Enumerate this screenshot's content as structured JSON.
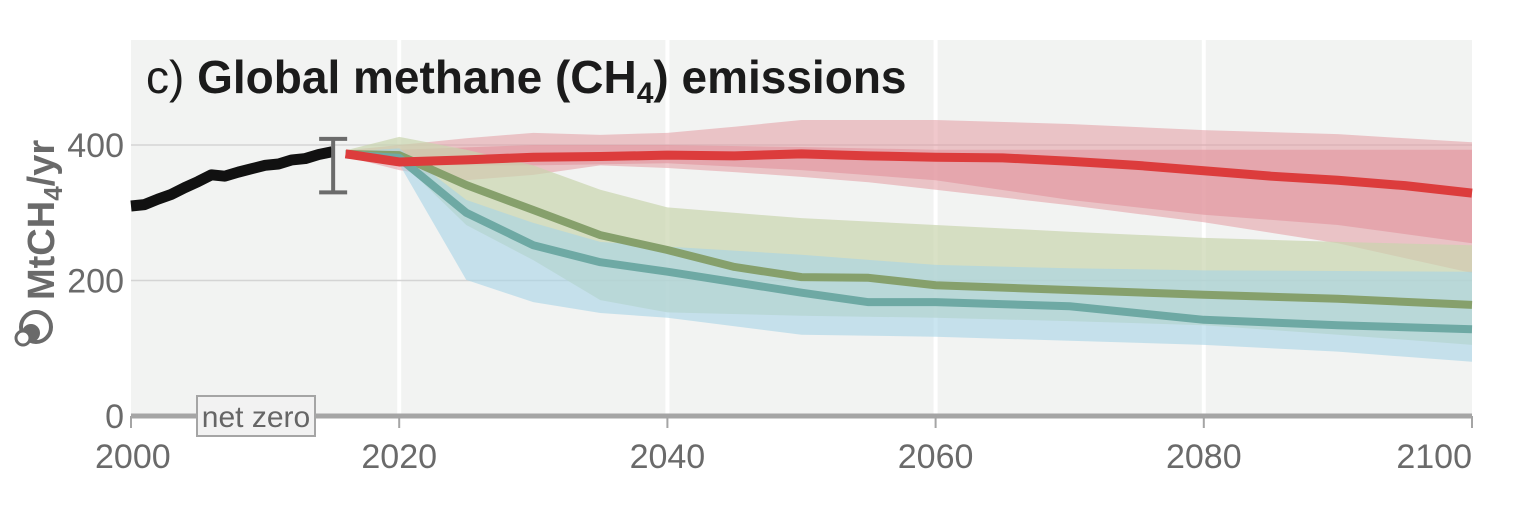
{
  "chart_data": {
    "type": "line",
    "title": {
      "prefix": "c)",
      "main": "Global methane (CH",
      "sub": "4",
      "suffix": ") emissions"
    },
    "ylabel": {
      "main": "MtCH",
      "sub": "4",
      "suffix": "/yr"
    },
    "ylabel_icon": "molecule-icon",
    "xlim": [
      2000,
      2100
    ],
    "ylim": [
      0,
      555
    ],
    "x_ticks": [
      2000,
      2020,
      2040,
      2060,
      2080,
      2100
    ],
    "y_ticks": [
      0,
      200,
      400
    ],
    "grid": true,
    "annotation": "net zero",
    "colors": {
      "background": "#f2f3f2",
      "historical": "#111111",
      "red": "#dc3c3c",
      "olive": "#86a06c",
      "teal": "#6ea9a4",
      "red_band": "#e39aa2",
      "olive_band": "#c9d4ae",
      "blue_band": "#a6d3e6",
      "error_bar": "#6b6b6b",
      "axis": "#a5a5a5"
    },
    "historical": {
      "x": [
        2000,
        2001,
        2002,
        2003,
        2004,
        2005,
        2006,
        2007,
        2008,
        2009,
        2010,
        2011,
        2012,
        2013,
        2014,
        2015
      ],
      "y": [
        310,
        312,
        320,
        327,
        337,
        346,
        356,
        354,
        360,
        365,
        370,
        372,
        378,
        380,
        386,
        390
      ]
    },
    "error_bar": {
      "x": 2015,
      "low": 330,
      "high": 409
    },
    "bands": [
      {
        "id": "red-outer",
        "color": "red_band",
        "opacity": 0.55,
        "x": [
          2016,
          2020,
          2025,
          2030,
          2035,
          2040,
          2045,
          2050,
          2055,
          2060,
          2070,
          2080,
          2090,
          2100
        ],
        "upper": [
          392,
          400,
          410,
          418,
          415,
          418,
          427,
          437,
          437,
          437,
          431,
          422,
          416,
          404
        ],
        "lower": [
          383,
          363,
          348,
          356,
          370,
          366,
          360,
          353,
          345,
          334,
          311,
          286,
          255,
          211
        ]
      },
      {
        "id": "red-inner",
        "color": "red_band",
        "opacity": 0.7,
        "x": [
          2016,
          2020,
          2030,
          2040,
          2050,
          2060,
          2070,
          2080,
          2090,
          2100
        ],
        "upper": [
          390,
          393,
          400,
          400,
          397,
          393,
          393,
          393,
          393,
          393
        ],
        "lower": [
          385,
          370,
          370,
          373,
          363,
          348,
          319,
          297,
          282,
          255
        ]
      },
      {
        "id": "olive",
        "color": "olive_band",
        "opacity": 0.7,
        "x": [
          2016,
          2020,
          2025,
          2030,
          2035,
          2040,
          2050,
          2060,
          2070,
          2080,
          2090,
          2100
        ],
        "upper": [
          392,
          412,
          393,
          370,
          334,
          308,
          292,
          282,
          272,
          263,
          257,
          252
        ],
        "lower": [
          385,
          378,
          282,
          230,
          171,
          153,
          148,
          145,
          140,
          134,
          120,
          105
        ]
      },
      {
        "id": "blue",
        "color": "blue_band",
        "opacity": 0.6,
        "x": [
          2016,
          2020,
          2025,
          2030,
          2035,
          2040,
          2050,
          2060,
          2070,
          2080,
          2090,
          2100
        ],
        "upper": [
          390,
          395,
          319,
          285,
          257,
          250,
          238,
          223,
          218,
          215,
          214,
          213
        ],
        "lower": [
          385,
          372,
          201,
          168,
          152,
          145,
          120,
          117,
          111,
          105,
          95,
          80
        ]
      }
    ],
    "series": [
      {
        "id": "olive",
        "color": "olive",
        "x": [
          2016,
          2020,
          2025,
          2030,
          2035,
          2040,
          2045,
          2050,
          2055,
          2060,
          2070,
          2080,
          2090,
          2100
        ],
        "y": [
          387,
          385,
          341,
          304,
          267,
          245,
          220,
          205,
          204,
          193,
          186,
          179,
          173,
          164
        ]
      },
      {
        "id": "teal",
        "color": "teal",
        "x": [
          2016,
          2020,
          2025,
          2030,
          2035,
          2040,
          2050,
          2055,
          2060,
          2070,
          2080,
          2090,
          2100
        ],
        "y": [
          386,
          381,
          300,
          252,
          227,
          213,
          182,
          168,
          168,
          162,
          142,
          134,
          128
        ]
      },
      {
        "id": "red",
        "color": "red",
        "x": [
          2016,
          2020,
          2025,
          2030,
          2035,
          2040,
          2045,
          2050,
          2055,
          2060,
          2065,
          2070,
          2075,
          2080,
          2085,
          2090,
          2095,
          2100
        ],
        "y": [
          387,
          375,
          378,
          382,
          383,
          385,
          384,
          387,
          384,
          382,
          381,
          376,
          370,
          362,
          354,
          348,
          340,
          329
        ]
      }
    ]
  }
}
